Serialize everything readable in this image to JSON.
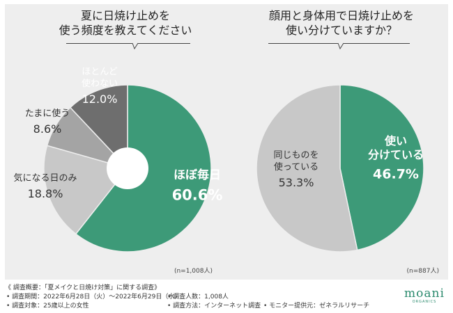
{
  "chart_data": [
    {
      "type": "pie",
      "variant": "donut",
      "title": "夏に日焼け止めを使う頻度を教えてください",
      "title_lines": [
        "夏に日焼け止めを",
        "使う頻度を教えてください"
      ],
      "sample": "(n=1,008人)",
      "slices": [
        {
          "label_lines": [
            "ほぼ毎日"
          ],
          "value": 60.6,
          "value_text": "60.6%",
          "color": "#3d9a78"
        },
        {
          "label_lines": [
            "気になる日のみ"
          ],
          "value": 18.8,
          "value_text": "18.8%",
          "color": "#c8c8c8"
        },
        {
          "label_lines": [
            "たまに使う"
          ],
          "value": 8.6,
          "value_text": "8.6%",
          "color": "#a4a4a4"
        },
        {
          "label_lines": [
            "ほとんど",
            "使わない"
          ],
          "value": 12.0,
          "value_text": "12.0%",
          "color": "#6e6e6e"
        }
      ]
    },
    {
      "type": "pie",
      "title": "顔用と身体用で日焼け止めを使い分けていますか？",
      "title_lines": [
        "顔用と身体用で日焼け止めを",
        "使い分けていますか？"
      ],
      "sample": "(n=887人)",
      "slices": [
        {
          "label_lines": [
            "使い",
            "分けている"
          ],
          "value": 46.7,
          "value_text": "46.7%",
          "color": "#3d9a78"
        },
        {
          "label_lines": [
            "同じものを",
            "使っている"
          ],
          "value": 53.3,
          "value_text": "53.3%",
          "color": "#c8c8c8"
        }
      ]
    }
  ],
  "footer": {
    "heading": "《 調査概要：「夏メイクと日焼け対策」に関する調査》",
    "period": "• 調査期間：2022年6月28日（火）～2022年6月29日（水）",
    "count": "• 調査人数：1,008人",
    "target": "• 調査対象：25歳以上の女性",
    "method": "• 調査方法：インターネット調査",
    "provider": "• モニター提供元：ゼネラルリサーチ"
  },
  "brand": {
    "name": "moani",
    "sub": "ORGANICS"
  }
}
